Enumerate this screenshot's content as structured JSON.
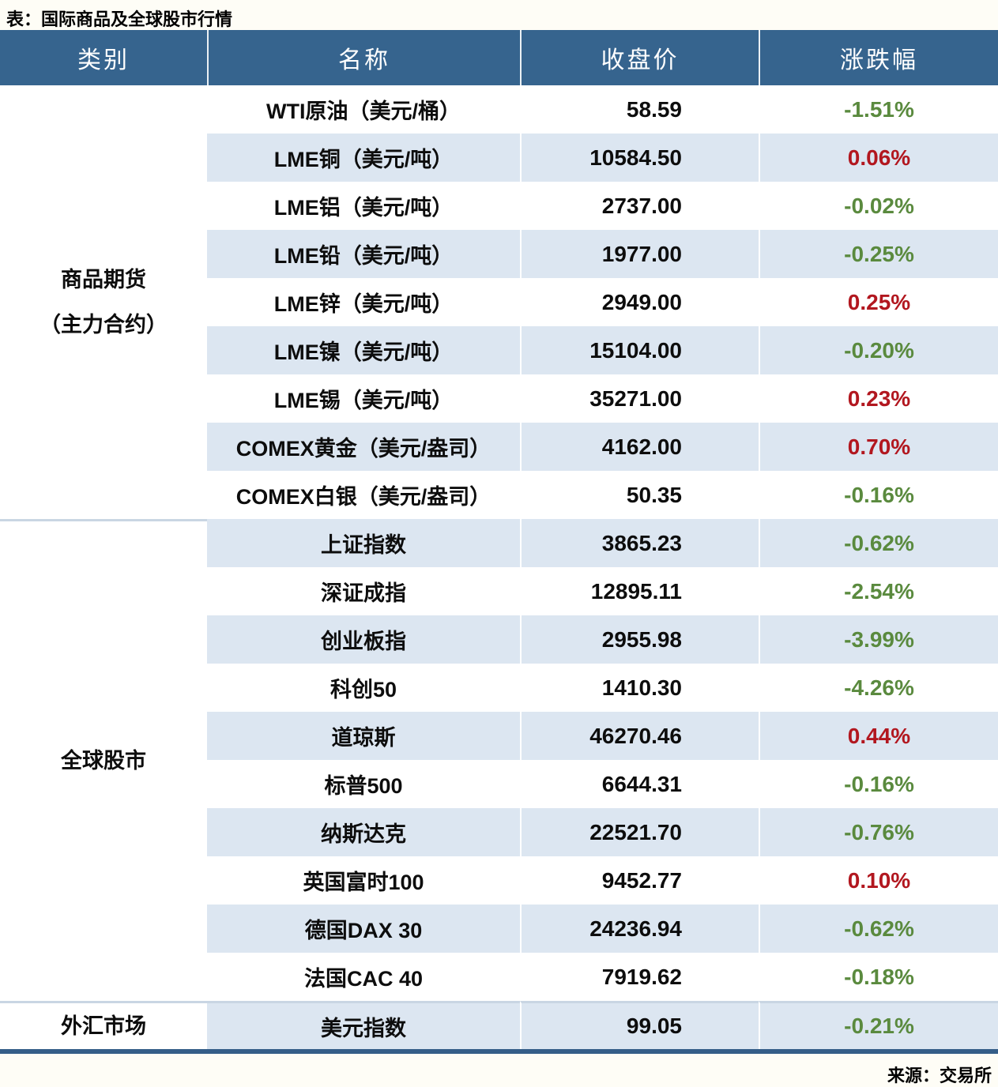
{
  "page": {
    "title": "表：国际商品及全球股市行情",
    "source": "来源：交易所"
  },
  "colors": {
    "page_bg": "#fefdf6",
    "header_bg": "#36648e",
    "header_text": "#ffffff",
    "stripe_bg": "#dce6f1",
    "row_bg": "#ffffff",
    "up_color": "#b2171f",
    "down_color": "#5a8a3e",
    "text_color": "#0d0d0d",
    "divider": "#c9d6e3",
    "bottom_border": "#355e88"
  },
  "chart_data": {
    "type": "table",
    "title": "表：国际商品及全球股市行情",
    "source": "来源：交易所",
    "columns": [
      "类别",
      "名称",
      "收盘价",
      "涨跌幅"
    ],
    "groups": [
      {
        "id": "commodity-futures",
        "category": "商品期货\n（主力合约）",
        "rows": [
          {
            "name": "WTI原油（美元/桶）",
            "close": "58.59",
            "change": "-1.51%",
            "direction": "down"
          },
          {
            "name": "LME铜（美元/吨）",
            "close": "10584.50",
            "change": "0.06%",
            "direction": "up"
          },
          {
            "name": "LME铝（美元/吨）",
            "close": "2737.00",
            "change": "-0.02%",
            "direction": "down"
          },
          {
            "name": "LME铅（美元/吨）",
            "close": "1977.00",
            "change": "-0.25%",
            "direction": "down"
          },
          {
            "name": "LME锌（美元/吨）",
            "close": "2949.00",
            "change": "0.25%",
            "direction": "up"
          },
          {
            "name": "LME镍（美元/吨）",
            "close": "15104.00",
            "change": "-0.20%",
            "direction": "down"
          },
          {
            "name": "LME锡（美元/吨）",
            "close": "35271.00",
            "change": "0.23%",
            "direction": "up"
          },
          {
            "name": "COMEX黄金（美元/盎司）",
            "close": "4162.00",
            "change": "0.70%",
            "direction": "up"
          },
          {
            "name": "COMEX白银（美元/盎司）",
            "close": "50.35",
            "change": "-0.16%",
            "direction": "down"
          }
        ]
      },
      {
        "id": "global-stocks",
        "category": "全球股市",
        "rows": [
          {
            "name": "上证指数",
            "close": "3865.23",
            "change": "-0.62%",
            "direction": "down"
          },
          {
            "name": "深证成指",
            "close": "12895.11",
            "change": "-2.54%",
            "direction": "down"
          },
          {
            "name": "创业板指",
            "close": "2955.98",
            "change": "-3.99%",
            "direction": "down"
          },
          {
            "name": "科创50",
            "close": "1410.30",
            "change": "-4.26%",
            "direction": "down"
          },
          {
            "name": "道琼斯",
            "close": "46270.46",
            "change": "0.44%",
            "direction": "up"
          },
          {
            "name": "标普500",
            "close": "6644.31",
            "change": "-0.16%",
            "direction": "down"
          },
          {
            "name": "纳斯达克",
            "close": "22521.70",
            "change": "-0.76%",
            "direction": "down"
          },
          {
            "name": "英国富时100",
            "close": "9452.77",
            "change": "0.10%",
            "direction": "up"
          },
          {
            "name": "德国DAX 30",
            "close": "24236.94",
            "change": "-0.62%",
            "direction": "down"
          },
          {
            "name": "法国CAC 40",
            "close": "7919.62",
            "change": "-0.18%",
            "direction": "down"
          }
        ]
      },
      {
        "id": "fx-market",
        "category": "外汇市场",
        "rows": [
          {
            "name": "美元指数",
            "close": "99.05",
            "change": "-0.21%",
            "direction": "down"
          }
        ]
      }
    ]
  }
}
